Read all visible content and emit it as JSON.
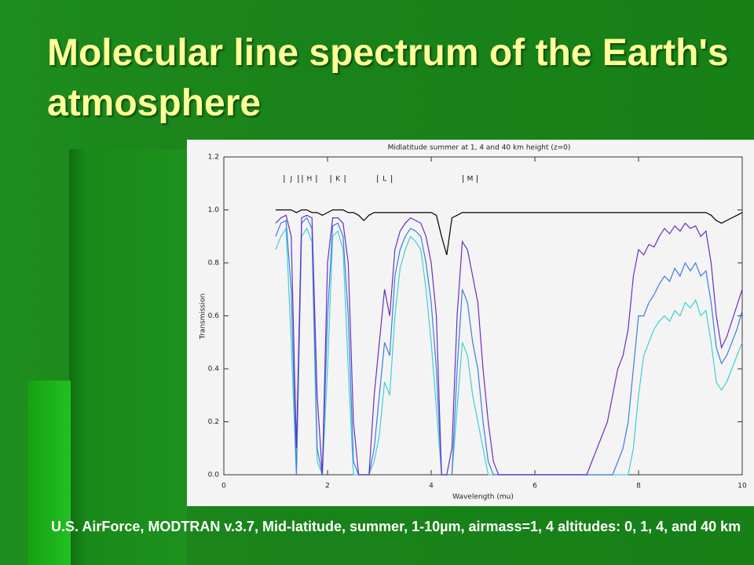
{
  "slide": {
    "title": "Molecular line spectrum of the Earth's atmosphere",
    "caption": "U.S. AirForce, MODTRAN v.3.7, Mid-latitude, summer, 1-10µm, airmass=1, 4 altitudes: 0, 1, 4, and 40 km"
  },
  "chart_data": {
    "type": "line",
    "title": "Midlatitude summer at 1, 4 and 40 km height (z=0)",
    "x_label": "Wavelength (mu)",
    "y_label": "Transmission",
    "xlim": [
      0,
      10
    ],
    "xticks": [
      0,
      2,
      4,
      6,
      8,
      10
    ],
    "ylim": [
      0,
      1.2
    ],
    "yticks": [
      {
        "value": 0,
        "label": "0.0"
      },
      {
        "value": 0.2,
        "label": "0.2"
      },
      {
        "value": 0.4,
        "label": "0.4"
      },
      {
        "value": 0.6,
        "label": "0.6"
      },
      {
        "value": 0.8,
        "label": "0.8"
      },
      {
        "value": 1,
        "label": "1.0"
      },
      {
        "value": 1.2,
        "label": "1.2"
      }
    ],
    "annotations": [
      {
        "text": "J",
        "x": 1.3
      },
      {
        "text": "H",
        "x": 1.65
      },
      {
        "text": "K",
        "x": 2.2
      },
      {
        "text": "L",
        "x": 3.1
      },
      {
        "text": "M",
        "x": 4.75
      }
    ],
    "x": [
      1.0,
      1.1,
      1.2,
      1.3,
      1.4,
      1.5,
      1.6,
      1.7,
      1.8,
      1.9,
      2.0,
      2.1,
      2.2,
      2.3,
      2.4,
      2.5,
      2.6,
      2.7,
      2.8,
      2.9,
      3.0,
      3.1,
      3.2,
      3.3,
      3.4,
      3.5,
      3.6,
      3.7,
      3.8,
      3.9,
      4.0,
      4.1,
      4.2,
      4.3,
      4.4,
      4.5,
      4.6,
      4.7,
      4.8,
      4.9,
      5.0,
      5.1,
      5.2,
      5.3,
      5.4,
      5.5,
      5.6,
      5.7,
      5.8,
      5.9,
      6.0,
      6.1,
      6.2,
      6.3,
      6.4,
      6.5,
      6.6,
      6.7,
      6.8,
      6.9,
      7.0,
      7.1,
      7.2,
      7.3,
      7.4,
      7.5,
      7.6,
      7.7,
      7.8,
      7.9,
      8.0,
      8.1,
      8.2,
      8.3,
      8.4,
      8.5,
      8.6,
      8.7,
      8.8,
      8.9,
      9.0,
      9.1,
      9.2,
      9.3,
      9.4,
      9.5,
      9.6,
      9.7,
      9.8,
      9.9,
      10.0
    ],
    "series": [
      {
        "color": "#000000",
        "values": [
          1.0,
          1.0,
          1.0,
          1.0,
          0.99,
          1.0,
          1.0,
          0.99,
          0.99,
          0.98,
          0.99,
          1.0,
          1.0,
          1.0,
          0.99,
          0.99,
          0.98,
          0.96,
          0.98,
          0.99,
          0.99,
          0.99,
          0.99,
          0.99,
          0.99,
          0.99,
          0.99,
          0.99,
          0.99,
          0.99,
          0.99,
          0.98,
          0.9,
          0.83,
          0.97,
          0.98,
          0.99,
          0.99,
          0.99,
          0.99,
          0.99,
          0.99,
          0.99,
          0.99,
          0.99,
          0.99,
          0.99,
          0.99,
          0.99,
          0.99,
          0.99,
          0.99,
          0.99,
          0.99,
          0.99,
          0.99,
          0.99,
          0.99,
          0.99,
          0.99,
          0.99,
          0.99,
          0.99,
          0.99,
          0.99,
          0.99,
          0.99,
          0.99,
          0.99,
          0.99,
          0.99,
          0.99,
          0.99,
          0.99,
          0.99,
          0.99,
          0.99,
          0.99,
          0.99,
          0.99,
          0.99,
          0.99,
          0.99,
          0.99,
          0.98,
          0.96,
          0.95,
          0.96,
          0.97,
          0.98,
          0.99
        ]
      },
      {
        "color": "#6a2fbf",
        "values": [
          0.95,
          0.97,
          0.98,
          0.9,
          0.1,
          0.97,
          0.98,
          0.97,
          0.3,
          0.0,
          0.8,
          0.97,
          0.97,
          0.95,
          0.8,
          0.2,
          0.0,
          0.0,
          0.0,
          0.3,
          0.5,
          0.7,
          0.6,
          0.85,
          0.92,
          0.95,
          0.97,
          0.96,
          0.95,
          0.9,
          0.8,
          0.6,
          0.0,
          0.0,
          0.1,
          0.6,
          0.88,
          0.85,
          0.75,
          0.65,
          0.4,
          0.2,
          0.05,
          0,
          0,
          0,
          0,
          0,
          0,
          0,
          0,
          0,
          0,
          0,
          0,
          0,
          0,
          0,
          0,
          0,
          0,
          0.05,
          0.1,
          0.15,
          0.2,
          0.3,
          0.4,
          0.45,
          0.55,
          0.75,
          0.85,
          0.83,
          0.87,
          0.86,
          0.9,
          0.93,
          0.91,
          0.94,
          0.92,
          0.95,
          0.93,
          0.94,
          0.9,
          0.92,
          0.8,
          0.6,
          0.48,
          0.52,
          0.58,
          0.64,
          0.7
        ]
      },
      {
        "color": "#3a7de0",
        "values": [
          0.9,
          0.95,
          0.96,
          0.7,
          0.0,
          0.95,
          0.97,
          0.93,
          0.1,
          0.0,
          0.6,
          0.94,
          0.95,
          0.9,
          0.6,
          0.05,
          0,
          0,
          0,
          0.1,
          0.3,
          0.5,
          0.45,
          0.75,
          0.85,
          0.9,
          0.93,
          0.92,
          0.9,
          0.8,
          0.65,
          0.4,
          0,
          0,
          0,
          0.4,
          0.7,
          0.65,
          0.5,
          0.4,
          0.2,
          0.05,
          0,
          0,
          0,
          0,
          0,
          0,
          0,
          0,
          0,
          0,
          0,
          0,
          0,
          0,
          0,
          0,
          0,
          0,
          0,
          0,
          0,
          0,
          0,
          0,
          0.05,
          0.1,
          0.2,
          0.4,
          0.6,
          0.6,
          0.65,
          0.68,
          0.72,
          0.75,
          0.73,
          0.78,
          0.75,
          0.8,
          0.77,
          0.8,
          0.75,
          0.77,
          0.65,
          0.48,
          0.42,
          0.45,
          0.5,
          0.55,
          0.62
        ]
      },
      {
        "color": "#40d0d0",
        "values": [
          0.85,
          0.9,
          0.93,
          0.5,
          0,
          0.9,
          0.93,
          0.88,
          0.05,
          0,
          0.4,
          0.9,
          0.92,
          0.85,
          0.4,
          0,
          0,
          0,
          0,
          0.05,
          0.15,
          0.35,
          0.3,
          0.6,
          0.78,
          0.85,
          0.9,
          0.88,
          0.85,
          0.7,
          0.5,
          0.25,
          0,
          0,
          0,
          0.25,
          0.5,
          0.45,
          0.3,
          0.2,
          0.1,
          0,
          0,
          0,
          0,
          0,
          0,
          0,
          0,
          0,
          0,
          0,
          0,
          0,
          0,
          0,
          0,
          0,
          0,
          0,
          0,
          0,
          0,
          0,
          0,
          0,
          0,
          0,
          0,
          0.1,
          0.3,
          0.45,
          0.5,
          0.55,
          0.58,
          0.6,
          0.58,
          0.62,
          0.6,
          0.65,
          0.63,
          0.66,
          0.6,
          0.62,
          0.5,
          0.35,
          0.32,
          0.35,
          0.4,
          0.45,
          0.5
        ]
      }
    ]
  }
}
